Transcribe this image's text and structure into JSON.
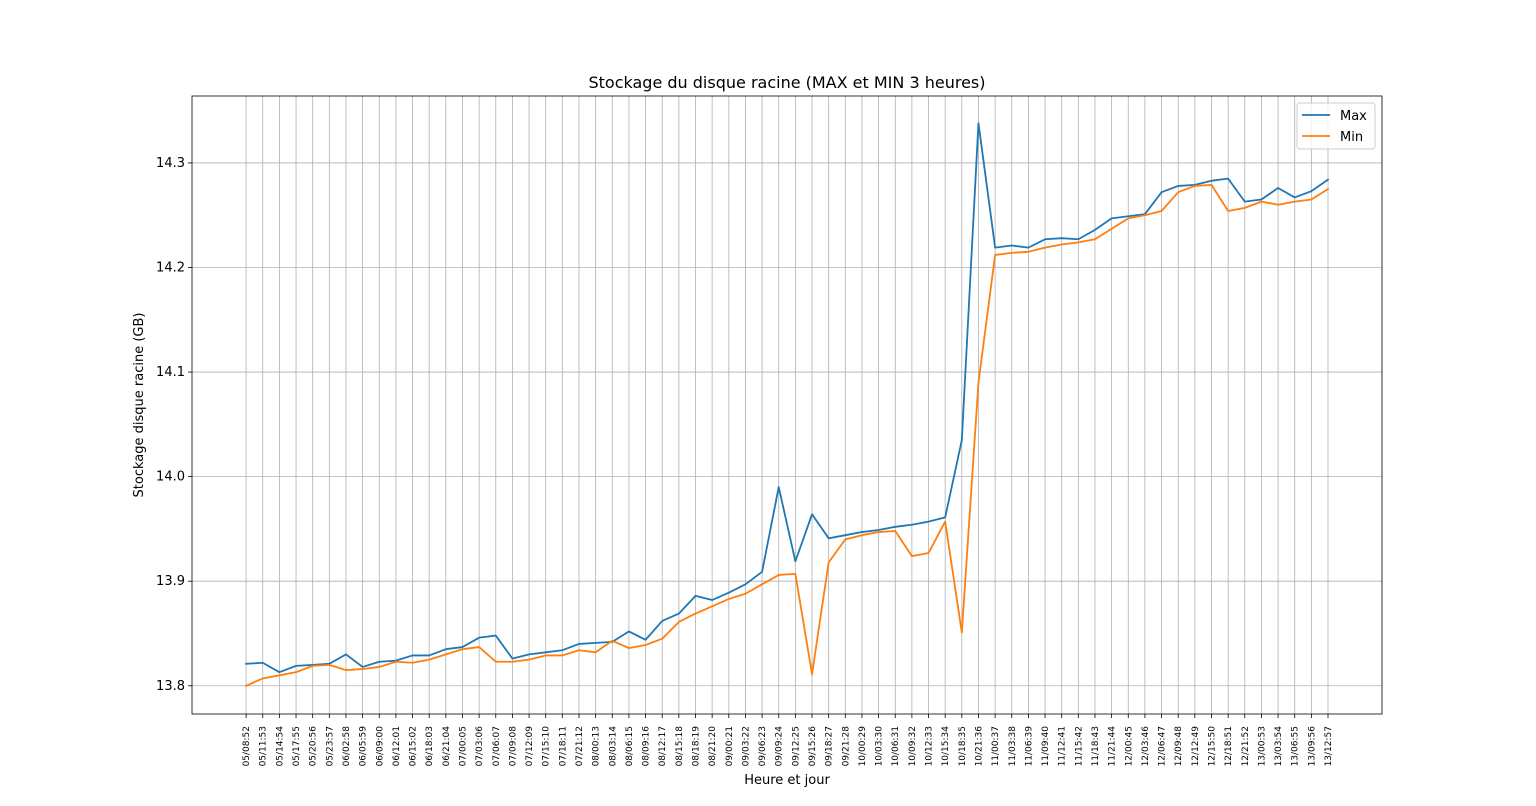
{
  "chart_data": {
    "type": "line",
    "title": "Stockage du disque racine (MAX et MIN 3 heures)",
    "xlabel": "Heure et jour",
    "ylabel": "Stockage disque racine (GB)",
    "ylim": [
      13.773,
      14.364
    ],
    "yticks": [
      13.8,
      13.9,
      14.0,
      14.1,
      14.2,
      14.3
    ],
    "ytick_labels": [
      "13.8",
      "13.9",
      "14.0",
      "14.1",
      "14.2",
      "14.3"
    ],
    "grid": true,
    "legend": "top-right",
    "categories": [
      "05/08:52",
      "05/11:53",
      "05/14:54",
      "05/17:55",
      "05/20:56",
      "05/23:57",
      "06/02:58",
      "06/05:59",
      "06/09:00",
      "06/12:01",
      "06/15:02",
      "06/18:03",
      "06/21:04",
      "07/00:05",
      "07/03:06",
      "07/06:07",
      "07/09:08",
      "07/12:09",
      "07/15:10",
      "07/18:11",
      "07/21:12",
      "08/00:13",
      "08/03:14",
      "08/06:15",
      "08/09:16",
      "08/12:17",
      "08/15:18",
      "08/18:19",
      "08/21:20",
      "09/00:21",
      "09/03:22",
      "09/06:23",
      "09/09:24",
      "09/12:25",
      "09/15:26",
      "09/18:27",
      "09/21:28",
      "10/00:29",
      "10/03:30",
      "10/06:31",
      "10/09:32",
      "10/12:33",
      "10/15:34",
      "10/18:35",
      "10/21:36",
      "11/00:37",
      "11/03:38",
      "11/06:39",
      "11/09:40",
      "11/12:41",
      "11/15:42",
      "11/18:43",
      "11/21:44",
      "12/00:45",
      "12/03:46",
      "12/06:47",
      "12/09:48",
      "12/12:49",
      "12/15:50",
      "12/18:51",
      "12/21:52",
      "13/00:53",
      "13/03:54",
      "13/06:55",
      "13/09:56",
      "13/12:57"
    ],
    "series": [
      {
        "name": "Max",
        "color": "#1f77b4",
        "values": [
          13.821,
          13.822,
          13.813,
          13.819,
          13.82,
          13.821,
          13.83,
          13.818,
          13.823,
          13.824,
          13.829,
          13.829,
          13.835,
          13.837,
          13.846,
          13.848,
          13.826,
          13.83,
          13.832,
          13.834,
          13.84,
          13.841,
          13.842,
          13.852,
          13.844,
          13.862,
          13.869,
          13.886,
          13.882,
          13.889,
          13.897,
          13.909,
          13.99,
          13.919,
          13.964,
          13.941,
          13.944,
          13.947,
          13.949,
          13.952,
          13.954,
          13.957,
          13.961,
          14.035,
          14.338,
          14.219,
          14.221,
          14.219,
          14.227,
          14.228,
          14.227,
          14.236,
          14.247,
          14.249,
          14.251,
          14.272,
          14.278,
          14.279,
          14.283,
          14.285,
          14.263,
          14.265,
          14.276,
          14.267,
          14.273,
          14.284
        ]
      },
      {
        "name": "Min",
        "color": "#ff7f0e",
        "values": [
          13.8,
          13.807,
          13.81,
          13.813,
          13.819,
          13.82,
          13.815,
          13.816,
          13.818,
          13.823,
          13.822,
          13.825,
          13.83,
          13.835,
          13.837,
          13.823,
          13.823,
          13.825,
          13.829,
          13.829,
          13.834,
          13.832,
          13.843,
          13.836,
          13.839,
          13.845,
          13.861,
          13.869,
          13.876,
          13.883,
          13.888,
          13.897,
          13.906,
          13.907,
          13.811,
          13.918,
          13.94,
          13.944,
          13.947,
          13.948,
          13.924,
          13.927,
          13.957,
          13.851,
          14.09,
          14.212,
          14.214,
          14.215,
          14.219,
          14.222,
          14.224,
          14.227,
          14.237,
          14.247,
          14.25,
          14.254,
          14.272,
          14.278,
          14.279,
          14.254,
          14.257,
          14.263,
          14.26,
          14.263,
          14.265,
          14.275
        ]
      }
    ]
  }
}
